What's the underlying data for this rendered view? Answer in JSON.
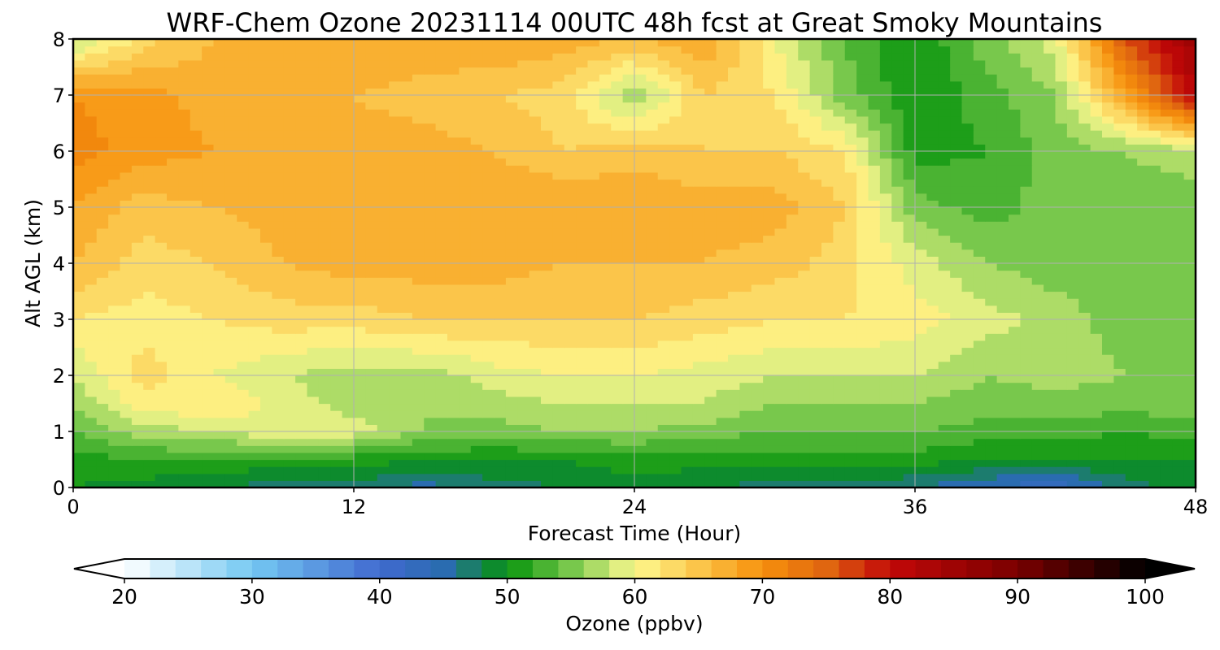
{
  "chart_data": {
    "type": "heatmap",
    "title": "WRF-Chem Ozone  20231114 00UTC 48h fcst at Great Smoky Mountains",
    "xlabel": "Forecast Time (Hour)",
    "ylabel": "Alt AGL (km)",
    "xlim": [
      0,
      48
    ],
    "ylim": [
      0,
      8
    ],
    "x_ticks": [
      "0",
      "12",
      "24",
      "36",
      "48"
    ],
    "y_ticks": [
      "0",
      "1",
      "2",
      "3",
      "4",
      "5",
      "6",
      "7",
      "8"
    ],
    "grid": true,
    "x": [
      0,
      3,
      6,
      9,
      12,
      15,
      18,
      21,
      24,
      27,
      30,
      33,
      36,
      39,
      42,
      45,
      48
    ],
    "y": [
      0,
      0.5,
      1,
      1.5,
      2,
      3,
      4,
      5,
      6,
      7,
      8
    ],
    "z": [
      [
        50,
        49,
        48,
        47,
        47,
        45,
        47,
        48,
        49,
        48,
        47,
        47,
        46,
        44,
        42,
        47,
        49
      ],
      [
        51,
        52,
        52,
        51,
        51,
        50,
        50,
        50,
        51,
        51,
        51,
        51,
        51,
        50,
        50,
        50,
        50
      ],
      [
        54,
        57,
        58,
        60,
        59,
        56,
        55,
        56,
        56,
        55,
        54,
        54,
        54,
        53,
        53,
        52,
        53
      ],
      [
        56,
        61,
        62,
        59,
        57,
        56,
        57,
        58,
        58,
        58,
        56,
        56,
        56,
        55,
        55,
        55,
        55
      ],
      [
        58,
        63,
        60,
        58,
        57,
        57,
        59,
        60,
        60,
        59,
        58,
        58,
        58,
        56,
        57,
        56,
        56
      ],
      [
        62,
        61,
        62,
        63,
        63,
        64,
        64,
        64,
        64,
        63,
        62,
        62,
        61,
        59,
        57,
        55,
        55
      ],
      [
        66,
        63,
        64,
        66,
        67,
        67,
        67,
        66,
        66,
        66,
        65,
        63,
        59,
        56,
        55,
        55,
        56
      ],
      [
        68,
        65,
        66,
        67,
        67,
        68,
        68,
        68,
        68,
        67,
        67,
        64,
        55,
        53,
        55,
        55,
        55
      ],
      [
        71,
        69,
        68,
        67,
        67,
        67,
        66,
        64,
        65,
        64,
        64,
        62,
        51,
        52,
        55,
        56,
        57
      ],
      [
        70,
        69,
        67,
        66,
        66,
        65,
        64,
        63,
        56,
        64,
        62,
        55,
        50,
        53,
        56,
        68,
        82
      ],
      [
        57,
        63,
        66,
        67,
        68,
        68,
        68,
        67,
        66,
        68,
        60,
        54,
        50,
        55,
        59,
        76,
        85
      ]
    ],
    "colorbar": {
      "label": "Ozone  (ppbv)",
      "min": 20,
      "max": 100,
      "step": 2,
      "ticks": [
        "20",
        "30",
        "40",
        "50",
        "60",
        "70",
        "80",
        "90",
        "100"
      ],
      "extend": "both"
    }
  }
}
